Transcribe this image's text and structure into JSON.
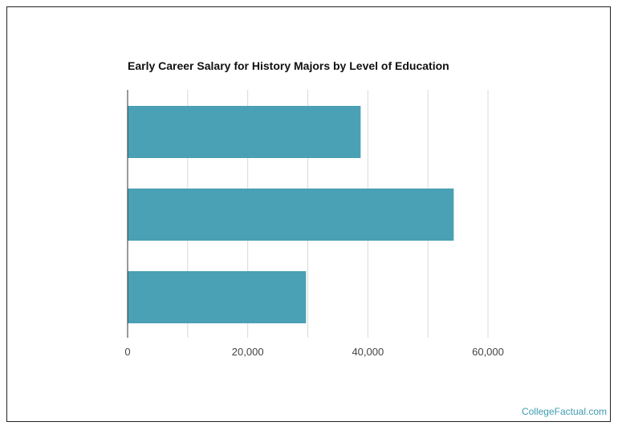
{
  "chart_data": {
    "type": "bar",
    "orientation": "horizontal",
    "title": "Early Career Salary for History Majors by Level of Education",
    "categories": [
      "",
      "",
      ""
    ],
    "values": [
      38800,
      54300,
      29700
    ],
    "xlim": [
      0,
      60000
    ],
    "x_ticks": [
      0,
      20000,
      40000,
      60000
    ],
    "x_tick_labels": [
      "0",
      "20,000",
      "40,000",
      "60,000"
    ],
    "xlabel": "",
    "ylabel": "",
    "grid": true,
    "bar_color": "#4aa0b4",
    "grid_color": "#d9d9d9",
    "axis_color": "#333333"
  },
  "source": {
    "label": "CollegeFactual.com",
    "color": "#3f9cb0"
  }
}
